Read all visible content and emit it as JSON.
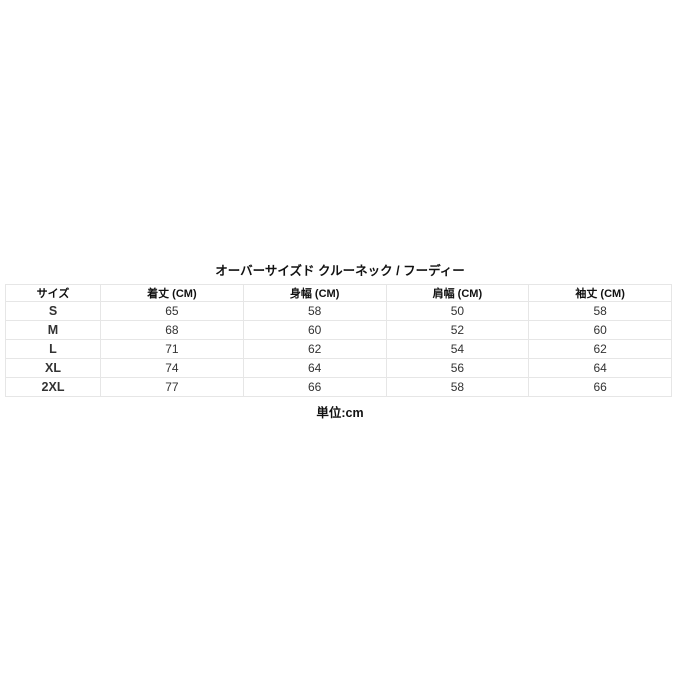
{
  "title": "オーバーサイズド クルーネック / フーディー",
  "table": {
    "headers": [
      "サイズ",
      "着丈 (CM)",
      "身幅 (CM)",
      "肩幅 (CM)",
      "袖丈 (CM)"
    ],
    "rows": [
      [
        "S",
        "65",
        "58",
        "50",
        "58"
      ],
      [
        "M",
        "68",
        "60",
        "52",
        "60"
      ],
      [
        "L",
        "71",
        "62",
        "54",
        "62"
      ],
      [
        "XL",
        "74",
        "64",
        "56",
        "64"
      ],
      [
        "2XL",
        "77",
        "66",
        "58",
        "66"
      ]
    ]
  },
  "unit": "単位:cm"
}
